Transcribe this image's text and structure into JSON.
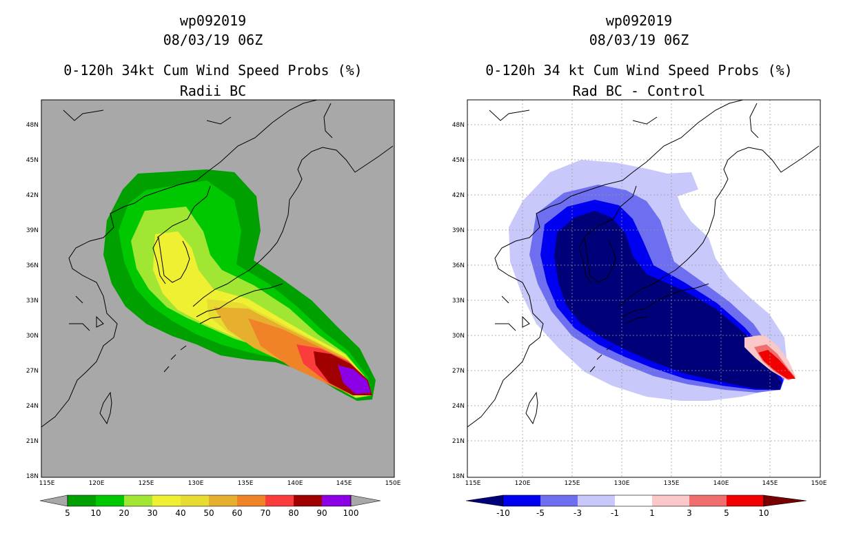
{
  "panels": [
    {
      "title_line1": "wp092019",
      "title_line2": "08/03/19 06Z",
      "title_line3": "0-120h 34kt Cum Wind Speed Probs (%)",
      "title_line4": "Radii BC",
      "map": {
        "background_color": "#a8a8a8",
        "lat_labels": [
          "48N",
          "45N",
          "42N",
          "39N",
          "36N",
          "33N",
          "30N",
          "27N",
          "24N",
          "21N",
          "18N"
        ],
        "lon_labels": [
          "115E",
          "120E",
          "125E",
          "130E",
          "135E",
          "140E",
          "145E",
          "150E"
        ],
        "lat_range": [
          18,
          50
        ],
        "lon_range": [
          114.5,
          150
        ]
      },
      "colorbar": {
        "labels": [
          "5",
          "10",
          "20",
          "30",
          "40",
          "50",
          "60",
          "70",
          "80",
          "90",
          "100"
        ],
        "colors": [
          "#00a000",
          "#00c800",
          "#a0e632",
          "#f0f032",
          "#e6dc32",
          "#e6af2d",
          "#f08228",
          "#fa3c3c",
          "#a00000",
          "#8c00e6"
        ],
        "end_color": "#a8a8a8"
      }
    },
    {
      "title_line1": "wp092019",
      "title_line2": "08/03/19 06Z",
      "title_line3": "0-120h 34 kt Cum Wind Speed Probs (%)",
      "title_line4": "Rad BC - Control",
      "map": {
        "background_color": "#ffffff",
        "lat_labels": [
          "48N",
          "45N",
          "42N",
          "39N",
          "36N",
          "33N",
          "30N",
          "27N",
          "24N",
          "21N",
          "18N"
        ],
        "lon_labels": [
          "115E",
          "120E",
          "125E",
          "130E",
          "135E",
          "140E",
          "145E",
          "150E"
        ],
        "lat_range": [
          18,
          50
        ],
        "lon_range": [
          114.5,
          150
        ]
      },
      "colorbar": {
        "labels": [
          "-10",
          "-5",
          "-3",
          "-1",
          "1",
          "3",
          "5",
          "10"
        ],
        "colors": [
          "#000078",
          "#0000f0",
          "#6e6ef0",
          "#c8c8fa",
          "#ffffff",
          "#fac8c8",
          "#f06e6e",
          "#f00000",
          "#780000"
        ]
      }
    }
  ]
}
